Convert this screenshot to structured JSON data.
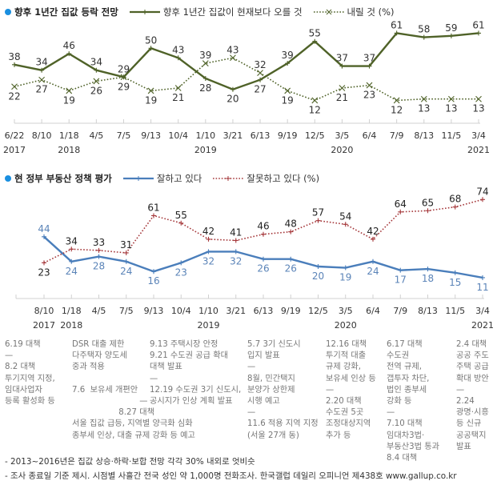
{
  "chart_data": [
    {
      "type": "line",
      "title": "향후 1년간 집값 등락 전망",
      "x": [
        "6/22",
        "8/10",
        "1/18",
        "4/5",
        "7/5",
        "9/13",
        "10/4",
        "1/10",
        "3/21",
        "6/13",
        "9/19",
        "12/5",
        "3/5",
        "6/4",
        "7/9",
        "8/13",
        "11/5",
        "3/4"
      ],
      "year_labels": [
        {
          "index": 0,
          "label": "2017"
        },
        {
          "index": 2,
          "label": "2018"
        },
        {
          "index": 7,
          "label": "2019"
        },
        {
          "index": 12,
          "label": "2020"
        },
        {
          "index": 17,
          "label": "2021"
        }
      ],
      "series": [
        {
          "name": "향후 1년간 집값이 현재보다 오를 것",
          "color": "#4f6228",
          "style": "solid",
          "marker": "plus",
          "values": [
            38,
            34,
            46,
            34,
            29,
            50,
            43,
            28,
            20,
            27,
            39,
            55,
            37,
            37,
            61,
            58,
            59,
            61
          ],
          "label_pos": [
            "above",
            "above",
            "above",
            "above",
            "above",
            "above",
            "above",
            "below",
            "below",
            "below",
            "above",
            "above",
            "above",
            "above",
            "above",
            "above",
            "above",
            "above"
          ]
        },
        {
          "name": "내릴 것 (%)",
          "color": "#4f6228",
          "style": "dotted",
          "marker": "x",
          "values": [
            22,
            27,
            19,
            26,
            29,
            19,
            21,
            39,
            43,
            32,
            19,
            12,
            21,
            23,
            12,
            13,
            13,
            13
          ],
          "label_pos": [
            "below",
            "below",
            "below",
            "below",
            "below",
            "below",
            "below",
            "above",
            "above",
            "above",
            "below",
            "below",
            "below",
            "below",
            "below",
            "below",
            "below",
            "below"
          ]
        }
      ],
      "ylim": [
        0,
        70
      ],
      "grid": false,
      "legend": "top"
    },
    {
      "type": "line",
      "title": "현 정부 부동산 정책 평가",
      "x": [
        "8/10",
        "1/18",
        "4/5",
        "7/5",
        "9/13",
        "10/4",
        "1/10",
        "3/21",
        "6/13",
        "9/19",
        "12/5",
        "3/5",
        "6/4",
        "7/9",
        "8/13",
        "11/5",
        "3/4"
      ],
      "year_labels": [
        {
          "index": 0,
          "label": "2017"
        },
        {
          "index": 1,
          "label": "2018"
        },
        {
          "index": 6,
          "label": "2019"
        },
        {
          "index": 11,
          "label": "2020"
        },
        {
          "index": 16,
          "label": "2021"
        }
      ],
      "series": [
        {
          "name": "잘하고 있다",
          "color": "#4a7ebb",
          "label_color": "#5b84b8",
          "style": "solid",
          "marker": "plus",
          "values": [
            44,
            24,
            28,
            24,
            16,
            23,
            32,
            32,
            26,
            26,
            20,
            19,
            24,
            17,
            18,
            15,
            11
          ],
          "label_pos": [
            "above",
            "below",
            "below",
            "below",
            "below",
            "below",
            "below",
            "below",
            "below",
            "below",
            "below",
            "below",
            "below",
            "below",
            "below",
            "below",
            "below"
          ]
        },
        {
          "name": "잘못하고 있다 (%)",
          "color": "#a5383b",
          "label_color": "#222222",
          "style": "dotted",
          "marker": "plus",
          "values": [
            23,
            34,
            33,
            31,
            61,
            55,
            42,
            41,
            46,
            48,
            57,
            54,
            42,
            64,
            65,
            68,
            74
          ],
          "label_pos": [
            "below",
            "above",
            "above",
            "above",
            "above",
            "above",
            "above",
            "above",
            "above",
            "above",
            "above",
            "above",
            "above",
            "above",
            "above",
            "above",
            "above"
          ]
        }
      ],
      "ylim": [
        0,
        80
      ],
      "grid": false,
      "legend": "top"
    }
  ],
  "legend1": {
    "title": "향후 1년간 집값 등락 전망",
    "items": [
      "향후 1년간 집값이 현재보다 오를 것",
      "내릴 것 (%)"
    ]
  },
  "legend2": {
    "title": "현 정부 부동산 정책 평가",
    "items": [
      "잘하고 있다",
      "잘못하고 있다 (%)"
    ]
  },
  "notes": [
    "6.19 대책\n—\n8.2 대책\n투기지역 지정,\n임대사업자\n등록 활성화 등",
    "DSR 대출 제한\n다주택자 양도세\n중과 적용\n\n7.6  보유세 개편안\n                          —\n                  8.27 대책\n서울 집값 급등, 지역별 양극화 심화\n종부세 인상, 대출 규제 강화 등 예고",
    "9.13 주택시장 안정\n9.21 수도권 공급 확대\n대책 발표\n—\n12.19 수도권 3기 신도시,\n공시지가 인상 계획 발표",
    "5.7 3기 신도시\n입지 발표\n—\n8월, 민간택지\n분양가 상한제\n시행 예고\n—\n11.6 적용 지역 지정\n(서울 27개 동)",
    "12.16 대책\n투기적 대출\n규제 강화,\n보유세 인상 등\n—\n2.20 대책\n수도권 5곳\n조정대상지역\n추가 등",
    "6.17 대책\n수도권\n전역 규제,\n갭투자 차단,\n법인 종부세\n강화 등\n—\n7.10 대책\n임대차3법·\n부동산3법 통과\n8.4 대책",
    "2.4 대책\n공공 주도\n주택 공급\n확대 방안\n—\n2.24\n광명·시흥\n등 신규\n공공택지\n발표"
  ],
  "footer": [
    "- 2013~2016년은 집값 상승·하락·보합 전망 각각 30% 내외로 엇비슷",
    "- 조사 종료일 기준 제시. 시점별 사흘간 전국 성인 약 1,000명 전화조사. 한국갤럽 데일리 오피니언 제438호 www.gallup.co.kr"
  ]
}
